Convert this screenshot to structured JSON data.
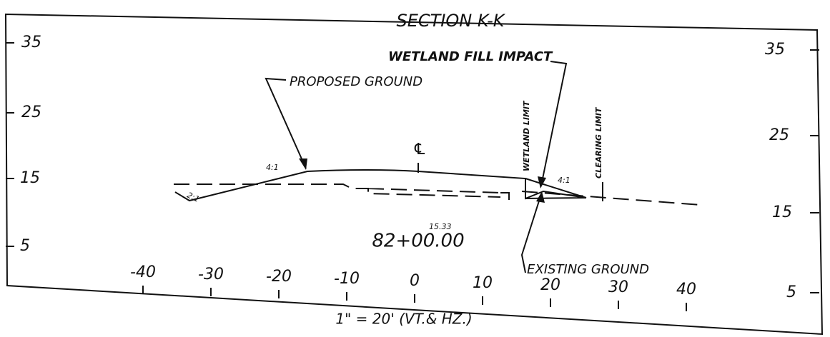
{
  "title": "SECTION K-K",
  "labels": {
    "proposed_ground": "PROPOSED GROUND",
    "wetland_fill_impact": "WETLAND FILL IMPACT",
    "wetland_limit": "WETLAND LIMIT",
    "clearing_limit": "CLEARING LIMIT",
    "existing_ground": "EXISTING GROUND",
    "centerline": "℄",
    "slope_left_fill": "4:1",
    "slope_left_cut": "2:1",
    "slope_right": "4:1"
  },
  "station": {
    "elevation": "15.33",
    "number": "82+00.00"
  },
  "left_axis": [
    "35",
    "25",
    "15",
    "5"
  ],
  "right_axis": [
    "35",
    "25",
    "15",
    "5"
  ],
  "bottom_axis": [
    "-40",
    "-30",
    "-20",
    "-10",
    "0",
    "10",
    "20",
    "30",
    "40"
  ],
  "scale": "1\" = 20' (VT.& HZ.)"
}
